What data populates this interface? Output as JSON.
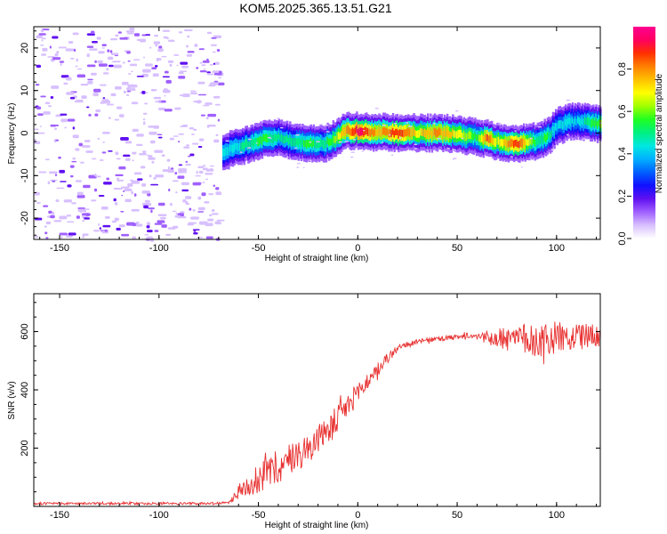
{
  "figure": {
    "title": "KOM5.2025.365.13.51.G21"
  },
  "chart_data": [
    {
      "type": "heatmap",
      "title": "KOM5.2025.365.13.51.G21",
      "xlabel": "Height of straight line (km)",
      "ylabel": "Frequency (Hz)",
      "xlim": [
        -163,
        122
      ],
      "ylim": [
        -25,
        25
      ],
      "xticks": [
        -150,
        -100,
        -50,
        0,
        50,
        100
      ],
      "yticks": [
        -20,
        -10,
        0,
        10,
        20
      ],
      "xtick_labels": [
        "-150",
        "-100",
        "-50",
        "0",
        "50",
        "100"
      ],
      "ytick_labels": [
        "-20",
        "-10",
        "0",
        "10",
        "20"
      ],
      "noise_region_x": [
        -163,
        -70
      ],
      "signal_track": {
        "x": [
          -68,
          -62,
          -55,
          -48,
          -40,
          -33,
          -25,
          -18,
          -12,
          -8,
          -5,
          0,
          5,
          10,
          20,
          30,
          40,
          50,
          60,
          65,
          70,
          80,
          90,
          95,
          100,
          105,
          110,
          115,
          122
        ],
        "freq_hz": [
          -4.5,
          -3.5,
          -2.5,
          -1.5,
          -1,
          -2,
          -2.5,
          -2.5,
          -1.5,
          0,
          0.5,
          0.5,
          0.3,
          0.2,
          0,
          0,
          0,
          -0.3,
          -1,
          -1.5,
          -2,
          -2.5,
          -2,
          -1,
          1.5,
          2.5,
          2.8,
          2.5,
          2.2
        ],
        "amplitude": [
          0.45,
          0.45,
          0.5,
          0.55,
          0.5,
          0.5,
          0.55,
          0.5,
          0.6,
          0.75,
          0.8,
          0.95,
          0.85,
          0.75,
          0.9,
          0.7,
          0.8,
          0.7,
          0.55,
          0.85,
          0.65,
          0.9,
          0.5,
          0.55,
          0.4,
          0.45,
          0.4,
          0.5,
          0.6
        ]
      },
      "colorbar": {
        "label": "Normalized spectral amplitude",
        "range": [
          0,
          1
        ],
        "ticks": [
          0.0,
          0.2,
          0.4,
          0.6,
          0.8
        ],
        "tick_labels": [
          "0.0",
          "0.2",
          "0.4",
          "0.6",
          "0.8"
        ],
        "colors": [
          "#ffffff",
          "#d8c0ff",
          "#a060ff",
          "#6010f0",
          "#1010ff",
          "#0060ff",
          "#00b0ff",
          "#00e8e0",
          "#00f080",
          "#20ff20",
          "#a0ff00",
          "#ffff00",
          "#ffc000",
          "#ff8000",
          "#ff3000",
          "#ff0060",
          "#ff0090"
        ]
      }
    },
    {
      "type": "line",
      "xlabel": "Height of straight line (km)",
      "ylabel": "SNR (v/v)",
      "xlim": [
        -163,
        122
      ],
      "ylim": [
        0,
        730
      ],
      "xticks": [
        -150,
        -100,
        -50,
        0,
        50,
        100
      ],
      "yticks": [
        200,
        400,
        600
      ],
      "xtick_labels": [
        "-150",
        "-100",
        "-50",
        "0",
        "50",
        "100"
      ],
      "ytick_labels": [
        "200",
        "400",
        "600"
      ],
      "series": [
        {
          "name": "SNR",
          "color": "#e83030",
          "x": [
            -163,
            -140,
            -120,
            -100,
            -80,
            -65,
            -60,
            -55,
            -50,
            -45,
            -40,
            -35,
            -30,
            -25,
            -20,
            -15,
            -10,
            -5,
            0,
            5,
            10,
            15,
            20,
            25,
            30,
            40,
            50,
            60,
            70,
            80,
            90,
            100,
            110,
            122
          ],
          "mean": [
            10,
            10,
            10,
            10,
            10,
            12,
            50,
            75,
            95,
            115,
            135,
            160,
            180,
            200,
            230,
            265,
            300,
            345,
            390,
            430,
            470,
            510,
            540,
            555,
            565,
            575,
            580,
            585,
            575,
            575,
            570,
            580,
            580,
            590
          ],
          "noise": [
            4,
            4,
            4,
            4,
            4,
            4,
            25,
            40,
            50,
            60,
            60,
            55,
            55,
            50,
            50,
            50,
            50,
            40,
            40,
            30,
            25,
            20,
            15,
            10,
            8,
            8,
            10,
            12,
            35,
            55,
            60,
            55,
            45,
            40
          ]
        }
      ]
    }
  ]
}
